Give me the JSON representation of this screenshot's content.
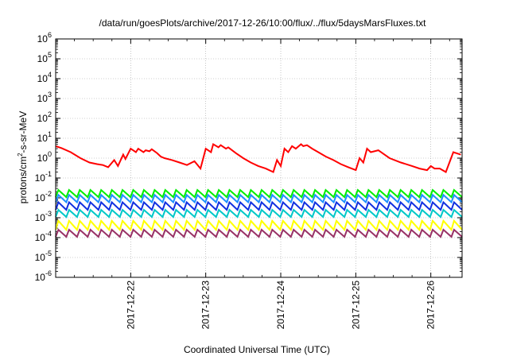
{
  "chart_data": {
    "type": "line",
    "title": "/data/run/goesPlots/archive/2017-12-26/10:00/flux/../flux/5daysMarsFluxes.txt",
    "xlabel": "Coordinated Universal Time (UTC)",
    "ylabel": "protons/cm²-s-sr-MeV",
    "ylabel_parts": {
      "base": "protons/cm",
      "sup": "2",
      "rest": "-s-sr-MeV"
    },
    "yscale": "log",
    "ylim_exponents": [
      -6,
      6
    ],
    "y_tick_exponents": [
      -6,
      -5,
      -4,
      -3,
      -2,
      -1,
      0,
      1,
      2,
      3,
      4,
      5,
      6
    ],
    "xlim_days": [
      "2017-12-21T00:00",
      "2017-12-26T10:00"
    ],
    "x_ticks": [
      "2017-12-22",
      "2017-12-23",
      "2017-12-24",
      "2017-12-25",
      "2017-12-26"
    ],
    "grid": true,
    "legend": "none",
    "series": [
      {
        "color": "#ff0000",
        "x": [
          0.0,
          0.08,
          0.2,
          0.33,
          0.45,
          0.55,
          0.63,
          0.7,
          0.78,
          0.83,
          0.9,
          0.93,
          1.0,
          1.07,
          1.1,
          1.17,
          1.2,
          1.25,
          1.28,
          1.35,
          1.4,
          1.45,
          1.55,
          1.65,
          1.75,
          1.85,
          1.93,
          2.0,
          2.07,
          2.1,
          2.17,
          2.2,
          2.27,
          2.3,
          2.4,
          2.5,
          2.6,
          2.7,
          2.8,
          2.9,
          2.95,
          3.0,
          3.05,
          3.1,
          3.15,
          3.2,
          3.27,
          3.3,
          3.35,
          3.42,
          3.5,
          3.6,
          3.7,
          3.8,
          3.9,
          4.0,
          4.05,
          4.1,
          4.15,
          4.2,
          4.3,
          4.45,
          4.6,
          4.75,
          4.85,
          4.95,
          5.0,
          5.05,
          5.12,
          5.2,
          5.3,
          5.4
        ],
        "y": [
          4.0,
          3.2,
          2.0,
          1.0,
          0.6,
          0.5,
          0.45,
          0.35,
          0.8,
          0.4,
          1.5,
          0.9,
          3.0,
          2.0,
          3.0,
          2.0,
          2.5,
          2.2,
          2.8,
          1.8,
          1.2,
          1.0,
          0.8,
          0.6,
          0.45,
          0.7,
          0.3,
          3.0,
          2.0,
          5.0,
          3.5,
          4.5,
          3.0,
          3.5,
          1.8,
          1.0,
          0.6,
          0.4,
          0.3,
          0.2,
          0.8,
          0.4,
          3.0,
          2.0,
          4.0,
          3.0,
          5.0,
          4.0,
          4.5,
          3.0,
          2.0,
          1.2,
          0.8,
          0.5,
          0.35,
          0.25,
          1.0,
          0.6,
          3.0,
          2.0,
          2.5,
          1.0,
          0.6,
          0.4,
          0.3,
          0.25,
          0.4,
          0.3,
          0.3,
          0.2,
          2.0,
          1.5
        ]
      },
      {
        "color": "#00ee00",
        "sawtooth": {
          "low": 0.011,
          "high": 0.025,
          "teeth": 38
        }
      },
      {
        "color": "#1e90ff",
        "sawtooth": {
          "low": 0.006,
          "high": 0.014,
          "teeth": 38
        }
      },
      {
        "color": "#1030e0",
        "sawtooth": {
          "low": 0.0025,
          "high": 0.006,
          "teeth": 38
        }
      },
      {
        "color": "#00c8c8",
        "sawtooth": {
          "low": 0.0011,
          "high": 0.0025,
          "teeth": 38
        }
      },
      {
        "color": "#ffff00",
        "sawtooth": {
          "low": 0.00025,
          "high": 0.0007,
          "teeth": 38
        }
      },
      {
        "color": "#993366",
        "sawtooth": {
          "low": 0.00011,
          "high": 0.00025,
          "teeth": 38
        }
      }
    ]
  }
}
